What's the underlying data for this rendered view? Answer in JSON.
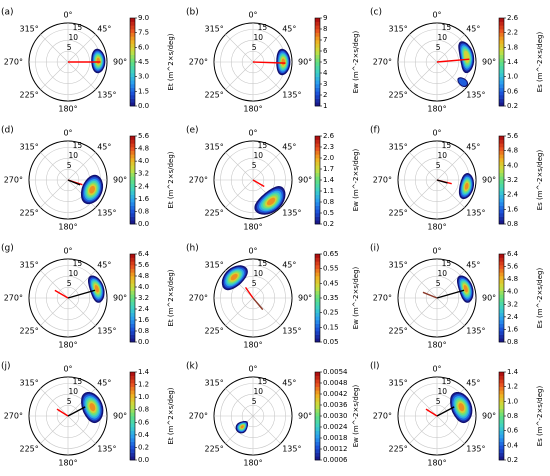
{
  "figure": {
    "direction_labels": [
      "0°",
      "45°",
      "90°",
      "135°",
      "180°",
      "225°",
      "270°",
      "315°"
    ],
    "radial_ticks": [
      5,
      10,
      15
    ],
    "radial_max": 18,
    "colormap": [
      "#1a1a8c",
      "#1c50d8",
      "#2a9cf0",
      "#3cd0c8",
      "#60e080",
      "#c8e040",
      "#f0b020",
      "#e85020",
      "#b01010"
    ],
    "vector_colors": {
      "red": "#ff0000",
      "black": "#000000",
      "brown": "#8b3a2a"
    }
  },
  "chart_data": [
    {
      "label": "(a)",
      "type": "polar-contour",
      "colorbar_label": "Et (m^2×s/deg)",
      "colorbar_ticks": [
        "0.0",
        "1.5",
        "3.0",
        "4.5",
        "6.0",
        "7.5",
        "9.0"
      ],
      "cmin": 0,
      "cmax": 9,
      "lobes": [
        {
          "dir_deg": 90,
          "dir_spread_deg": 22,
          "r_min": 11,
          "r_max": 17,
          "peak_r": 14,
          "peak_dir_deg": 88,
          "peak_level": 0.95
        }
      ],
      "vectors": [
        {
          "dir_deg": 90,
          "length": 15,
          "color": "red"
        }
      ]
    },
    {
      "label": "(b)",
      "type": "polar-contour",
      "colorbar_label": "Ew (m^-2×s/deg)",
      "colorbar_ticks": [
        "1",
        "2",
        "3",
        "4",
        "5",
        "6",
        "7",
        "8",
        "9"
      ],
      "cmin": 1,
      "cmax": 9,
      "lobes": [
        {
          "dir_deg": 92,
          "dir_spread_deg": 24,
          "r_min": 11,
          "r_max": 17,
          "peak_r": 14,
          "peak_dir_deg": 90,
          "peak_level": 0.95
        }
      ],
      "vectors": [
        {
          "dir_deg": 92,
          "length": 15,
          "color": "red"
        }
      ]
    },
    {
      "label": "(c)",
      "type": "polar-contour",
      "colorbar_label": "Es (m^-2×s/deg)",
      "colorbar_ticks": [
        "0.2",
        "0.6",
        "1.0",
        "1.4",
        "1.8",
        "2.2",
        "2.6"
      ],
      "cmin": 0.2,
      "cmax": 2.6,
      "lobes": [
        {
          "dir_deg": 72,
          "dir_spread_deg": 30,
          "r_min": 11,
          "r_max": 17,
          "peak_r": 14,
          "peak_dir_deg": 80,
          "peak_level": 0.7
        },
        {
          "dir_deg": 128,
          "dir_spread_deg": 6,
          "r_min": 12,
          "r_max": 17,
          "peak_r": 15,
          "peak_dir_deg": 128,
          "peak_level": 0.2
        }
      ],
      "vectors": [
        {
          "dir_deg": 85,
          "length": 15,
          "color": "red"
        }
      ]
    },
    {
      "label": "(d)",
      "type": "polar-contour",
      "colorbar_label": "Et (m^2×s/deg)",
      "colorbar_ticks": [
        "0.0",
        "0.8",
        "1.6",
        "2.4",
        "3.2",
        "4.0",
        "4.8",
        "5.6"
      ],
      "cmin": 0,
      "cmax": 5.6,
      "lobes": [
        {
          "dir_deg": 112,
          "dir_spread_deg": 32,
          "r_min": 8,
          "r_max": 17,
          "peak_r": 12,
          "peak_dir_deg": 112,
          "peak_level": 0.95
        }
      ],
      "vectors": [
        {
          "dir_deg": 108,
          "length": 7,
          "color": "red"
        },
        {
          "dir_deg": 112,
          "length": 6,
          "color": "black"
        }
      ]
    },
    {
      "label": "(e)",
      "type": "polar-contour",
      "colorbar_label": "Ew (m^-2×s/deg)",
      "colorbar_ticks": [
        "0.2",
        "0.5",
        "0.8",
        "1.1",
        "1.4",
        "1.7",
        "2.0",
        "2.3",
        "2.6"
      ],
      "cmin": 0.2,
      "cmax": 2.6,
      "lobes": [
        {
          "dir_deg": 135,
          "dir_spread_deg": 36,
          "r_min": 8,
          "r_max": 17,
          "peak_r": 13,
          "peak_dir_deg": 140,
          "peak_level": 0.95
        }
      ],
      "vectors": [
        {
          "dir_deg": 120,
          "length": 6,
          "color": "red"
        }
      ]
    },
    {
      "label": "(f)",
      "type": "polar-contour",
      "colorbar_label": "Es (m^-2×s/deg)",
      "colorbar_ticks": [
        "0.8",
        "1.6",
        "2.4",
        "3.2",
        "4.0",
        "4.8",
        "5.6"
      ],
      "cmin": 0.8,
      "cmax": 5.6,
      "lobes": [
        {
          "dir_deg": 102,
          "dir_spread_deg": 24,
          "r_min": 11,
          "r_max": 17,
          "peak_r": 14,
          "peak_dir_deg": 102,
          "peak_level": 0.9
        }
      ],
      "vectors": [
        {
          "dir_deg": 104,
          "length": 7,
          "color": "red"
        },
        {
          "dir_deg": 106,
          "length": 5,
          "color": "black"
        }
      ]
    },
    {
      "label": "(g)",
      "type": "polar-contour",
      "colorbar_label": "Et (m^2×s/deg)",
      "colorbar_ticks": [
        "0.0",
        "0.8",
        "1.6",
        "2.4",
        "3.2",
        "4.0",
        "4.8",
        "5.6",
        "6.4"
      ],
      "cmin": 0,
      "cmax": 6.4,
      "lobes": [
        {
          "dir_deg": 74,
          "dir_spread_deg": 26,
          "r_min": 11,
          "r_max": 17,
          "peak_r": 14,
          "peak_dir_deg": 72,
          "peak_level": 0.9
        }
      ],
      "vectors": [
        {
          "dir_deg": 300,
          "length": 7,
          "color": "red"
        },
        {
          "dir_deg": 74,
          "length": 13,
          "color": "black"
        }
      ]
    },
    {
      "label": "(h)",
      "type": "polar-contour",
      "colorbar_label": "Ew (m^-2×s/deg)",
      "colorbar_ticks": [
        "0.05",
        "0.15",
        "0.25",
        "0.35",
        "0.45",
        "0.55",
        "0.65"
      ],
      "cmin": 0.05,
      "cmax": 0.65,
      "lobes": [
        {
          "dir_deg": 322,
          "dir_spread_deg": 30,
          "r_min": 9,
          "r_max": 17,
          "peak_r": 13,
          "peak_dir_deg": 318,
          "peak_level": 0.9
        }
      ],
      "vectors": [
        {
          "dir_deg": 140,
          "length": 7,
          "color": "brown"
        },
        {
          "dir_deg": 325,
          "length": 6,
          "color": "red"
        }
      ]
    },
    {
      "label": "(i)",
      "type": "polar-contour",
      "colorbar_label": "Es (m^-2×s/deg)",
      "colorbar_ticks": [
        "0.8",
        "1.6",
        "2.4",
        "3.2",
        "4.0",
        "4.8",
        "5.6",
        "6.4"
      ],
      "cmin": 0.8,
      "cmax": 6.4,
      "lobes": [
        {
          "dir_deg": 74,
          "dir_spread_deg": 26,
          "r_min": 11,
          "r_max": 17,
          "peak_r": 14,
          "peak_dir_deg": 72,
          "peak_level": 0.9
        }
      ],
      "vectors": [
        {
          "dir_deg": 292,
          "length": 7,
          "color": "brown"
        },
        {
          "dir_deg": 74,
          "length": 13,
          "color": "black"
        }
      ]
    },
    {
      "label": "(j)",
      "type": "polar-contour",
      "colorbar_label": "Et (m^2×s/deg)",
      "colorbar_ticks": [
        "0.0",
        "0.2",
        "0.4",
        "0.6",
        "0.8",
        "1.0",
        "1.2",
        "1.4"
      ],
      "cmin": 0,
      "cmax": 1.4,
      "lobes": [
        {
          "dir_deg": 70,
          "dir_spread_deg": 34,
          "r_min": 8,
          "r_max": 17,
          "peak_r": 12,
          "peak_dir_deg": 70,
          "peak_level": 0.95
        }
      ],
      "vectors": [
        {
          "dir_deg": 302,
          "length": 6,
          "color": "red"
        },
        {
          "dir_deg": 62,
          "length": 9,
          "color": "black"
        }
      ]
    },
    {
      "label": "(k)",
      "type": "polar-contour",
      "colorbar_label": "Ew (m^-2×s/deg)",
      "colorbar_ticks": [
        "0.0006",
        "0.0012",
        "0.0018",
        "0.0024",
        "0.0030",
        "0.0036",
        "0.0042",
        "0.0048",
        "0.0054"
      ],
      "cmin": 0.0006,
      "cmax": 0.0054,
      "lobes": [
        {
          "dir_deg": 228,
          "dir_spread_deg": 18,
          "r_min": 4,
          "r_max": 10,
          "peak_r": 7,
          "peak_dir_deg": 225,
          "peak_level": 0.95
        }
      ],
      "vectors": []
    },
    {
      "label": "(l)",
      "type": "polar-contour",
      "colorbar_label": "Es (m^-2×s/deg)",
      "colorbar_ticks": [
        "0.2",
        "0.4",
        "0.6",
        "0.8",
        "1.0",
        "1.2",
        "1.4"
      ],
      "cmin": 0.2,
      "cmax": 1.4,
      "lobes": [
        {
          "dir_deg": 70,
          "dir_spread_deg": 34,
          "r_min": 8,
          "r_max": 17,
          "peak_r": 12,
          "peak_dir_deg": 70,
          "peak_level": 0.95
        }
      ],
      "vectors": [
        {
          "dir_deg": 302,
          "length": 6,
          "color": "red"
        },
        {
          "dir_deg": 62,
          "length": 9,
          "color": "black"
        }
      ]
    }
  ]
}
